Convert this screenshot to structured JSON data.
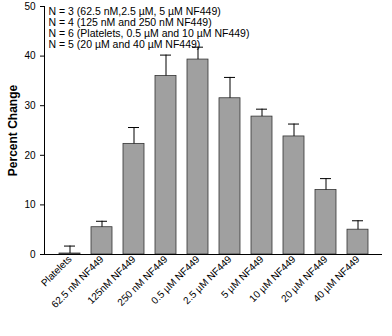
{
  "chart_data": {
    "type": "bar",
    "y_label": "Percent Change",
    "annotations": [
      "N = 3 (62.5 nM,2.5 µM, 5 µM NF449)",
      "N = 4 (125 nM and 250 nM NF449)",
      "N = 6 (Platelets, 0.5 µM and 10 µM NF449)",
      "N = 5 (20 µM and 40 µM NF449)"
    ],
    "categories": [
      "Platelets",
      "62.5 nM NF449",
      "125nM NF449",
      "250 nM NF449",
      "0.5 µM NF449",
      "2.5 µM NF449",
      "5 µM NF449",
      "10 µM NF449",
      "20 µM NF449",
      "40 µM NF449"
    ],
    "values": [
      0.2,
      5.5,
      22.3,
      36,
      39.3,
      31.5,
      27.8,
      23.8,
      13,
      5
    ],
    "errors": [
      1.5,
      1.2,
      3.3,
      4.2,
      2.5,
      4.2,
      1.5,
      2.5,
      2.3,
      1.8
    ],
    "color": "#a0a0a0",
    "ylim": [
      0,
      50
    ],
    "yticks": [
      0,
      10,
      20,
      30,
      40,
      50
    ],
    "grid": false
  }
}
